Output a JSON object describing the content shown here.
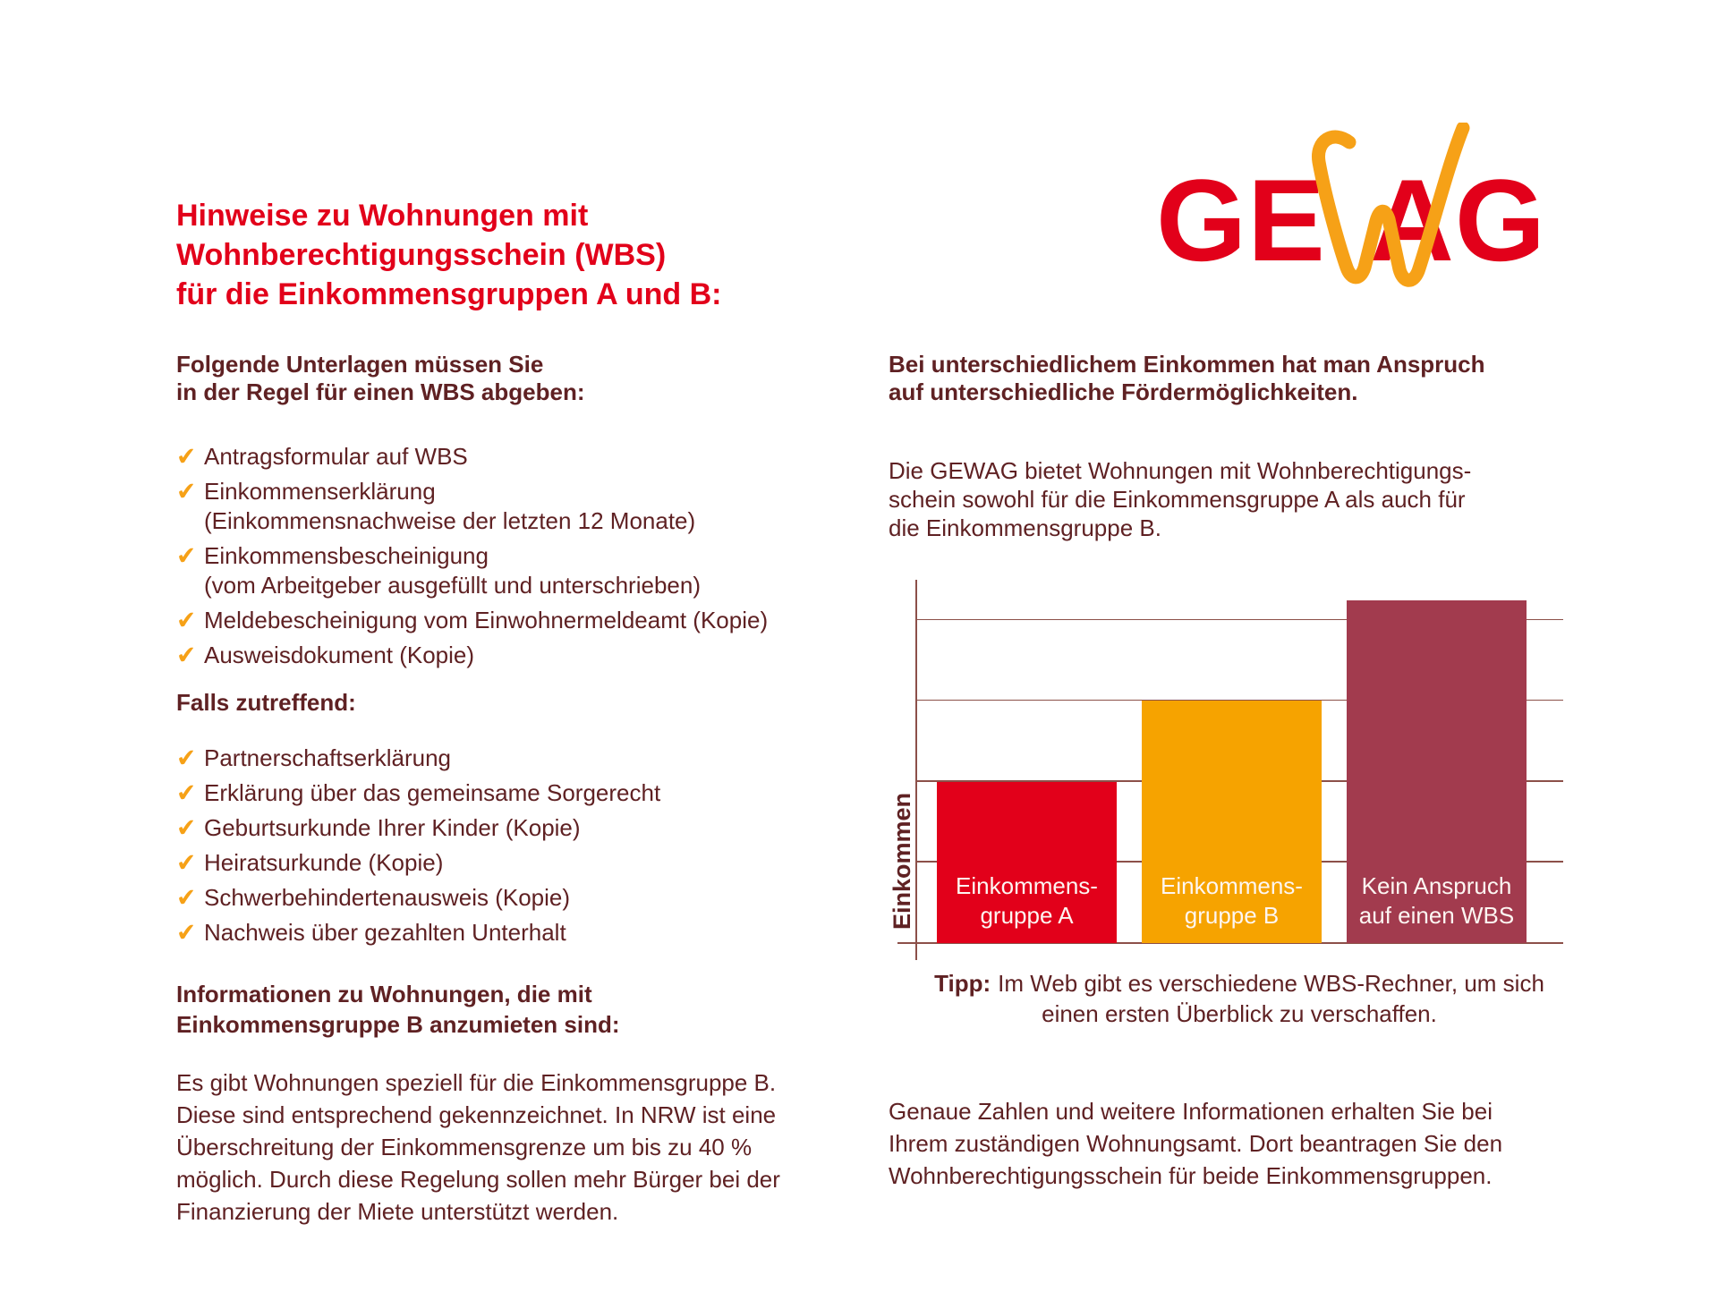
{
  "page": {
    "background": "#FFFFFF",
    "type": "info-flyer"
  },
  "colors": {
    "brand_red": "#E2001A",
    "accent_orange": "#F6A117",
    "wine_red": "#A23B4E",
    "text_bordeaux": "#5F2123",
    "axis_line": "#8C5049"
  },
  "left": {
    "heading_lines": [
      "Hinweise zu Wohnungen mit",
      "Wohnberechtigungsschein (WBS)",
      "für die Einkommensgruppen A und B:"
    ],
    "section1_title_lines": [
      "Folgende Unterlagen müssen Sie",
      "in der Regel für einen WBS abgeben:"
    ],
    "checklist1": [
      [
        "Antragsformular auf WBS"
      ],
      [
        "Einkommenserklärung",
        "(Einkommensnachweise der letzten 12 Monate)"
      ],
      [
        "Einkommensbescheinigung",
        "(vom Arbeitgeber ausgefüllt und unterschrieben)"
      ],
      [
        "Meldebescheinigung vom Einwohnermeldeamt (Kopie)"
      ],
      [
        "Ausweisdokument (Kopie)"
      ]
    ],
    "section2_title": "Falls zutreffend:",
    "checklist2": [
      [
        "Partnerschaftserklärung"
      ],
      [
        "Erklärung über das gemeinsame Sorgerecht"
      ],
      [
        "Geburtsurkunde Ihrer Kinder (Kopie)"
      ],
      [
        "Heiratsurkunde (Kopie)"
      ],
      [
        "Schwerbehindertenausweis (Kopie)"
      ],
      [
        "Nachweis über gezahlten Unterhalt"
      ]
    ],
    "section3_title_lines": [
      "Informationen zu Wohnungen, die mit",
      "Einkommensgruppe B anzumieten sind:"
    ],
    "paragraph_lines": [
      "Es gibt Wohnungen speziell für die Einkommensgruppe B.",
      "Diese sind entsprechend gekennzeichnet. In NRW ist eine",
      "Überschreitung der Einkommensgrenze um bis zu 40 %",
      "möglich. Durch diese Regelung sollen mehr Bürger bei der",
      "Finanzierung der Miete unterstützt werden."
    ],
    "check_icon_glyph": "✔"
  },
  "right": {
    "logo": {
      "part1": "GE",
      "part2": "AG",
      "w_icon": "orange-brush-w"
    },
    "intro_bold_lines": [
      "Bei unterschiedlichem Einkommen hat man Anspruch",
      "auf unterschiedliche Fördermöglichkeiten."
    ],
    "paragraph1_lines": [
      "Die GEWAG bietet Wohnungen mit Wohnberechtigungs-",
      "schein sowohl für die Einkommensgruppe A als auch für",
      "die Einkommensgruppe B."
    ],
    "tip_label": "Tipp:",
    "tip_line1": "Im Web gibt es verschiedene WBS-Rechner, um sich",
    "tip_line2": "einen ersten Überblick zu verschaffen.",
    "paragraph2_lines": [
      "Genaue Zahlen und weitere Informationen erhalten Sie bei",
      "Ihrem zuständigen Wohnungsamt. Dort beantragen Sie den",
      "Wohnberechtigungsschein für beide Einkommensgruppen."
    ]
  },
  "chart_data": {
    "type": "bar",
    "title": "",
    "xlabel": "",
    "ylabel": "Einkommen",
    "categories": [
      "Einkommensgruppe A",
      "Einkommensgruppe B",
      "Kein Anspruch auf einen WBS"
    ],
    "values": [
      2,
      3,
      4.25
    ],
    "ylim": [
      0,
      4.5
    ],
    "gridline_values": [
      1,
      2,
      3,
      4
    ],
    "grid": true,
    "legend_position": "none",
    "bars": [
      {
        "label_lines": [
          "Einkommens-",
          "gruppe A"
        ],
        "value": 2,
        "color": "#E2001A"
      },
      {
        "label_lines": [
          "Einkommens-",
          "gruppe B"
        ],
        "value": 3,
        "color": "#F6A300"
      },
      {
        "label_lines": [
          "Kein Anspruch",
          "auf einen WBS"
        ],
        "value": 4.25,
        "color": "#A23B4E"
      }
    ]
  }
}
